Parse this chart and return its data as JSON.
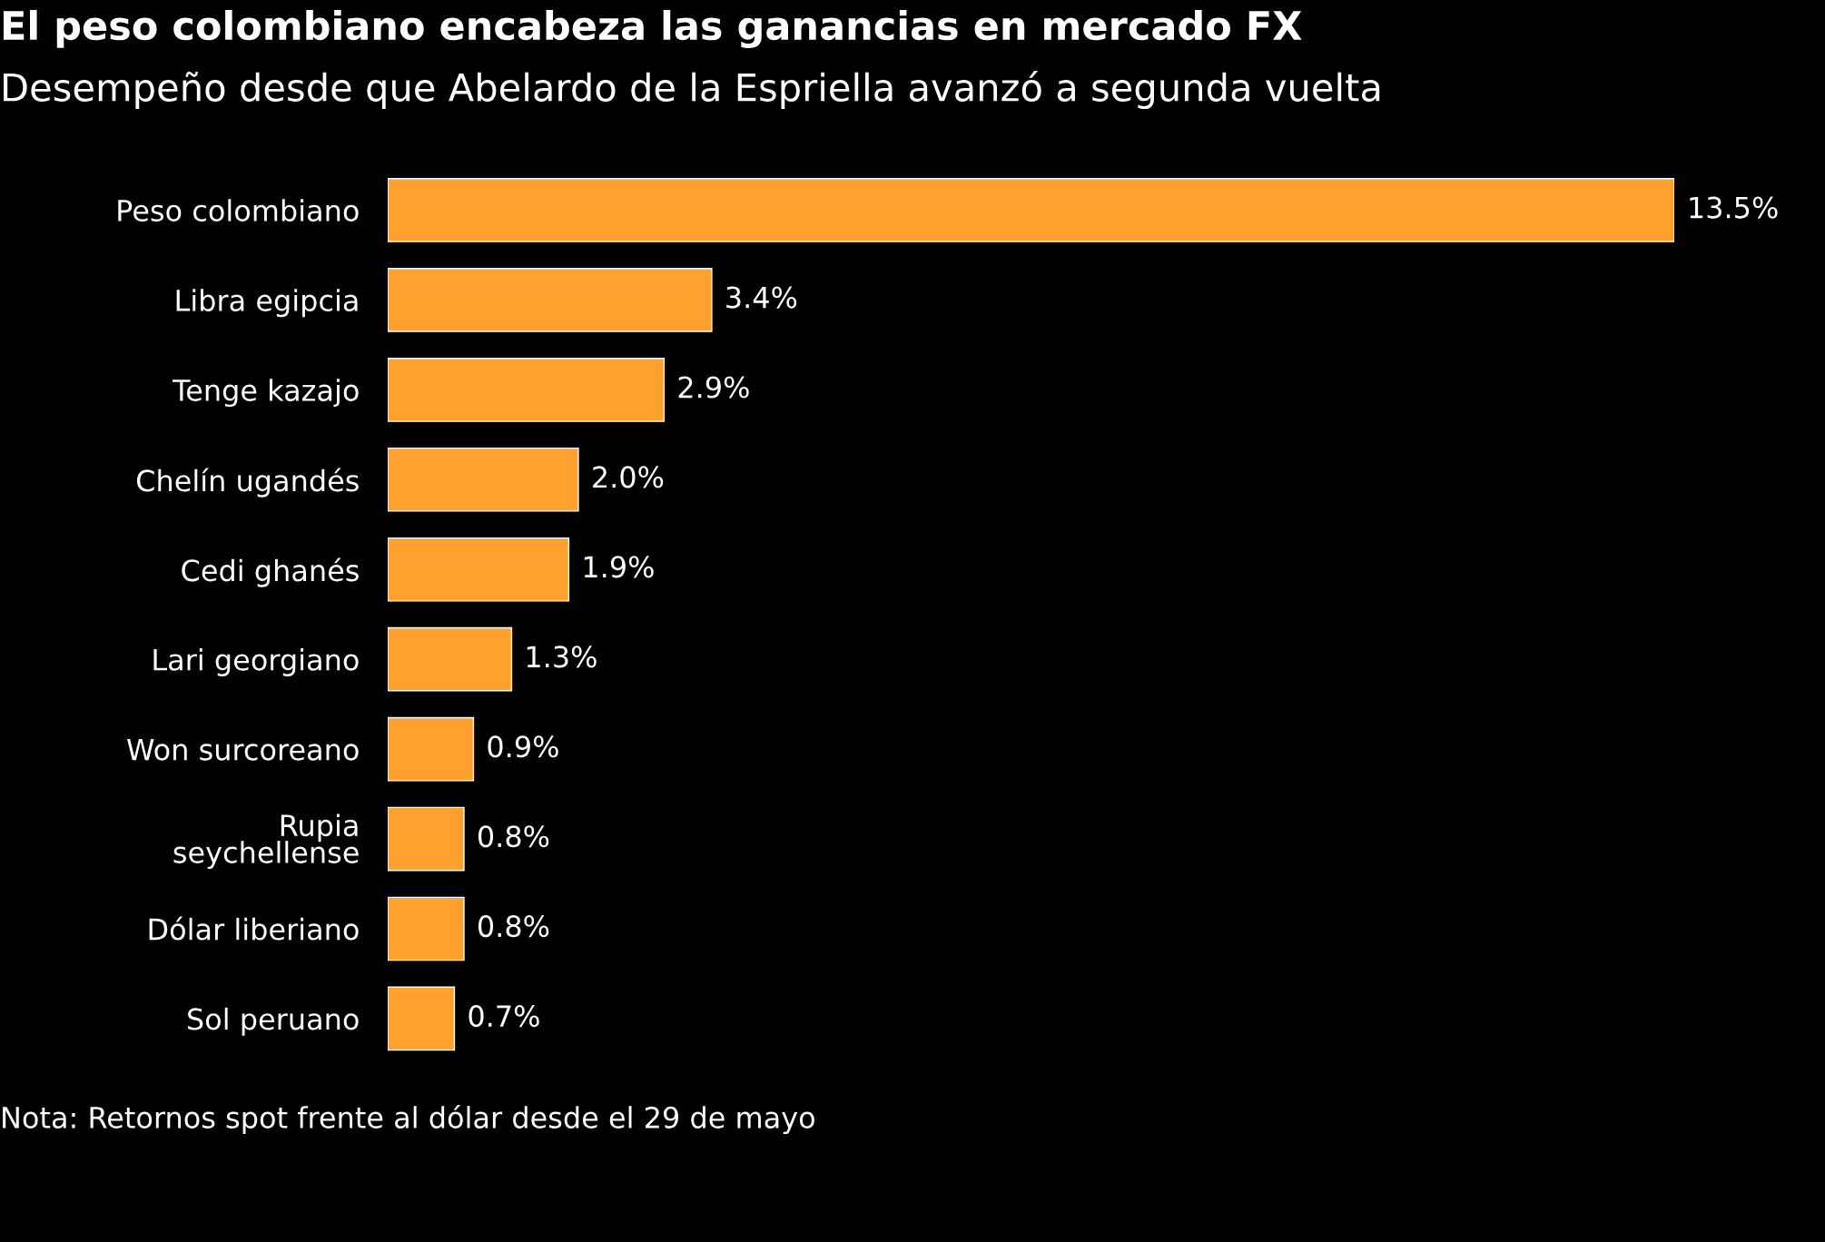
{
  "chart_data": {
    "type": "bar",
    "orientation": "horizontal",
    "title": "El peso colombiano encabeza las ganancias en mercado FX",
    "subtitle": "Desempeño desde que Abelardo de la Espriella avanzó a segunda vuelta",
    "categories": [
      "Peso colombiano",
      "Libra egipcia",
      "Tenge kazajo",
      "Chelín ugandés",
      "Cedi ghanés",
      "Lari georgiano",
      "Won surcoreano",
      "Rupia\nseychellense",
      "Dólar liberiano",
      "Sol peruano"
    ],
    "values": [
      13.5,
      3.4,
      2.9,
      2.0,
      1.9,
      1.3,
      0.9,
      0.8,
      0.8,
      0.7
    ],
    "value_labels": [
      "13.5%",
      "3.4%",
      "2.9%",
      "2.0%",
      "1.9%",
      "1.3%",
      "0.9%",
      "0.8%",
      "0.8%",
      "0.7%"
    ],
    "color": "#ffa02f",
    "annotations": [
      "Nota: Retornos spot frente al dólar desde el 29 de mayo"
    ],
    "grid": false,
    "legend": false
  }
}
